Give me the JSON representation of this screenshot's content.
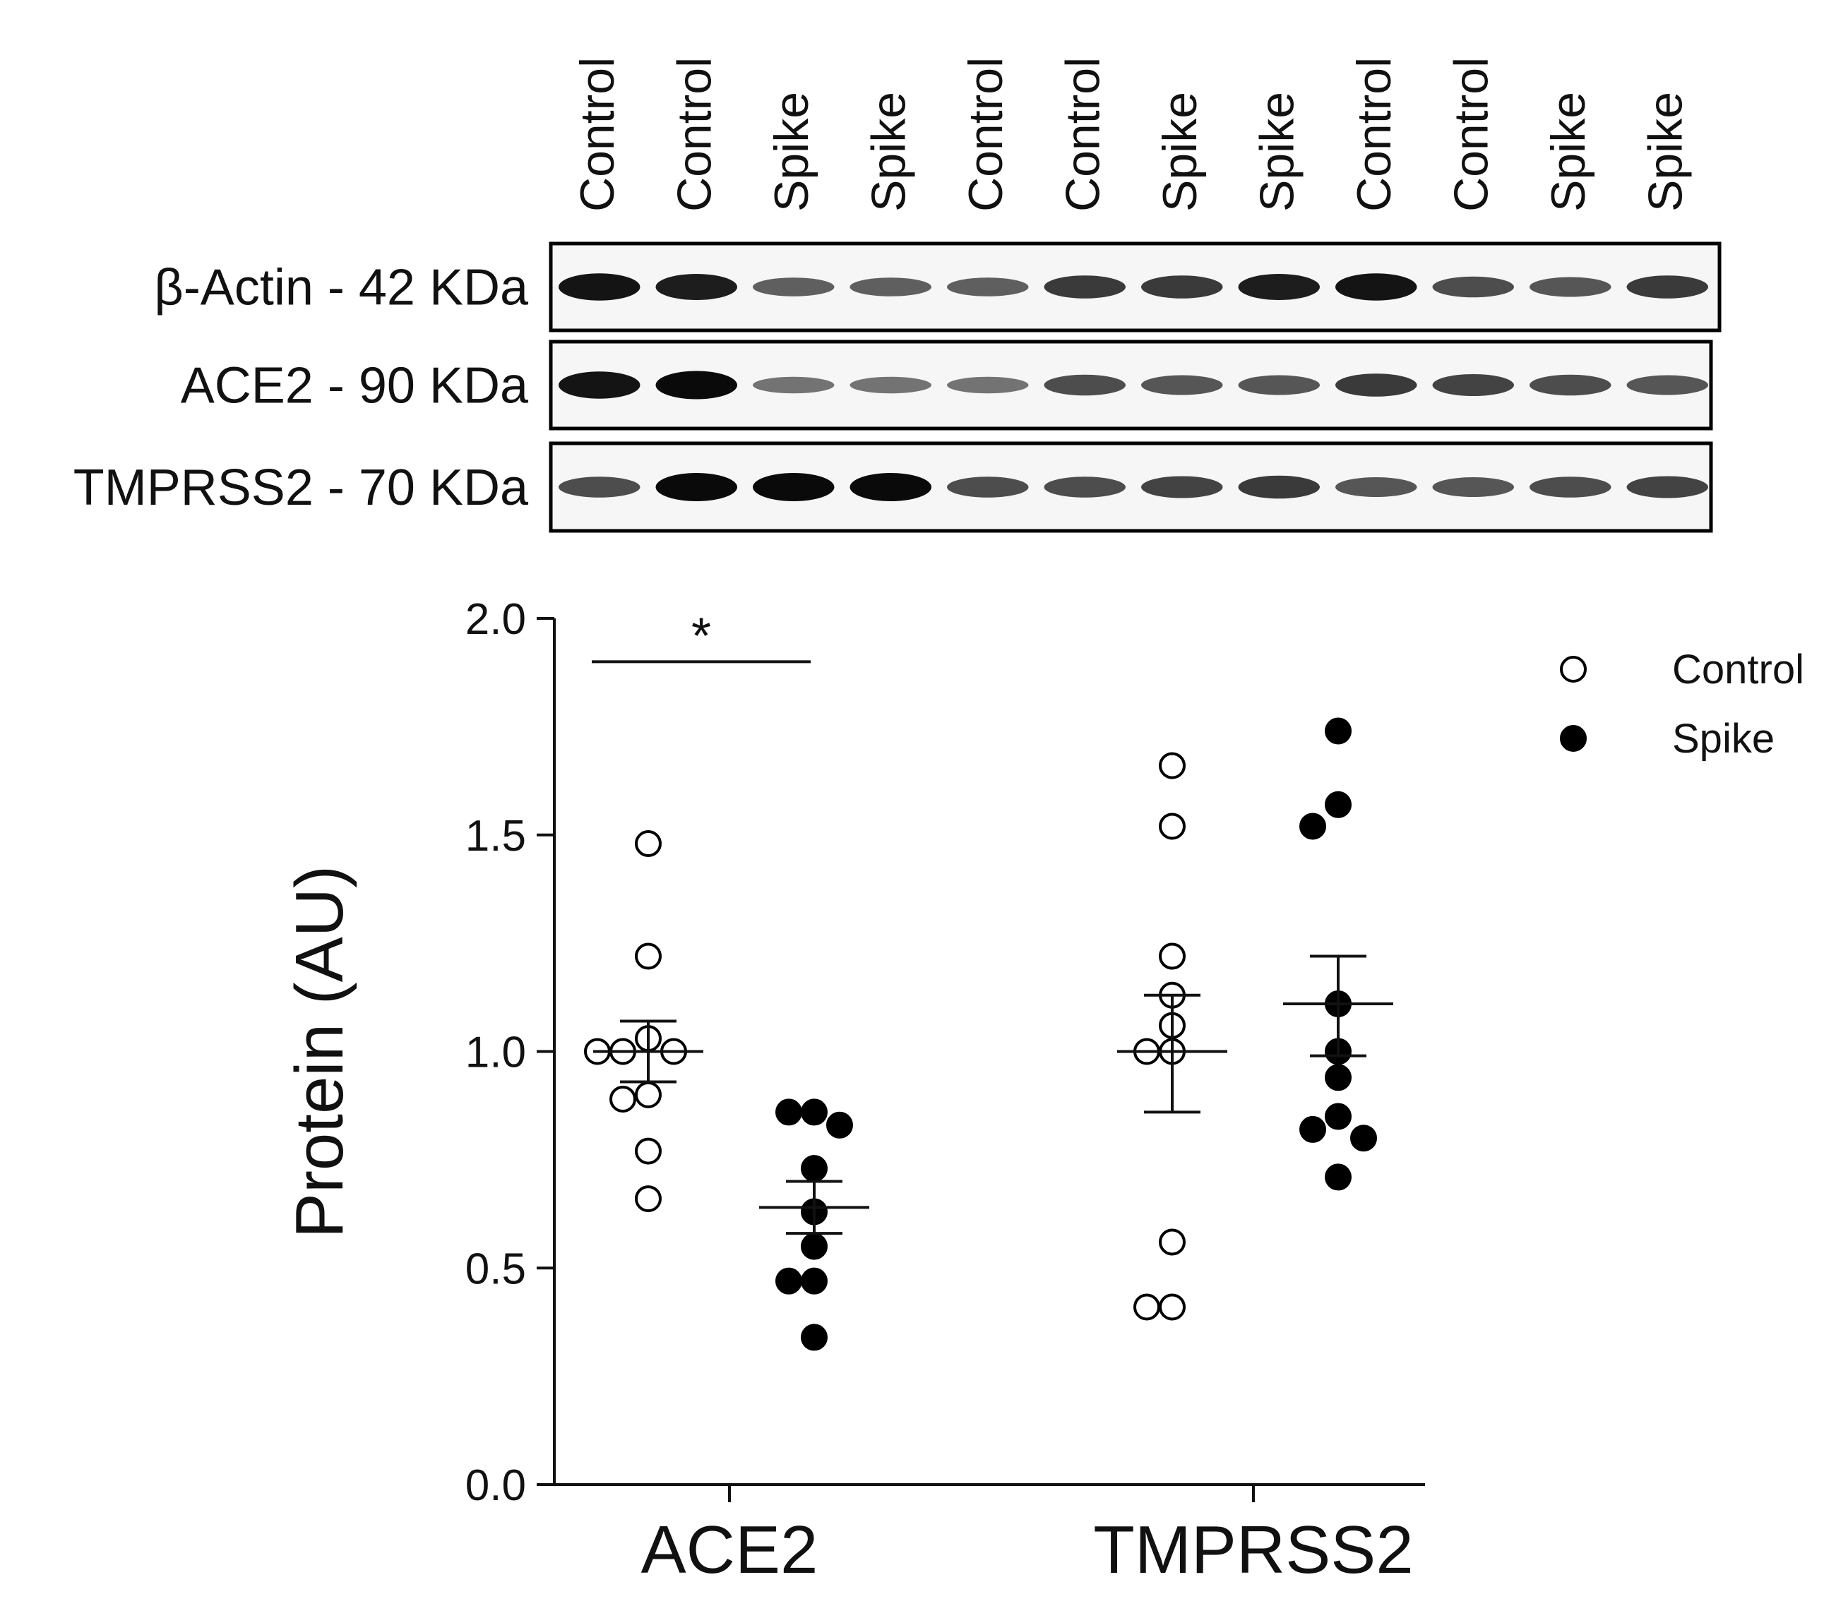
{
  "blot": {
    "lane_labels": [
      "Control",
      "Control",
      "Spike",
      "Spike",
      "Control",
      "Control",
      "Spike",
      "Spike",
      "Control",
      "Control",
      "Spike",
      "Spike"
    ],
    "panels": [
      {
        "label": "β-Actin - 42 KDa",
        "intensities": [
          0.95,
          0.9,
          0.55,
          0.55,
          0.55,
          0.75,
          0.75,
          0.9,
          0.95,
          0.65,
          0.6,
          0.75
        ]
      },
      {
        "label": "ACE2 - 90 KDa",
        "intensities": [
          0.95,
          1.0,
          0.45,
          0.45,
          0.45,
          0.65,
          0.6,
          0.6,
          0.75,
          0.7,
          0.65,
          0.6
        ]
      },
      {
        "label": "TMPRSS2 - 70 KDa",
        "intensities": [
          0.65,
          1.0,
          1.0,
          1.0,
          0.65,
          0.65,
          0.7,
          0.75,
          0.6,
          0.6,
          0.65,
          0.7
        ]
      }
    ]
  },
  "chart_data": {
    "type": "scatter",
    "categories": [
      "ACE2",
      "TMPRSS2"
    ],
    "ylabel": "Protein (AU)",
    "ylim": [
      0,
      2.0
    ],
    "yticks": [
      "0.0",
      "0.5",
      "1.0",
      "1.5",
      "2.0"
    ],
    "legend_position": "top-right",
    "series": [
      {
        "name": "Control",
        "fill": "#ffffff",
        "groups": [
          {
            "category": "ACE2",
            "mean": 1.0,
            "sem": [
              0.93,
              1.07
            ],
            "values": [
              1.48,
              1.22,
              1.03,
              1.0,
              1.0,
              1.0,
              0.9,
              0.89,
              0.77,
              0.66
            ]
          },
          {
            "category": "TMPRSS2",
            "mean": 1.0,
            "sem": [
              0.86,
              1.13
            ],
            "values": [
              1.66,
              1.52,
              1.22,
              1.13,
              1.06,
              1.0,
              1.0,
              0.56,
              0.41,
              0.41
            ]
          }
        ]
      },
      {
        "name": "Spike",
        "fill": "#000000",
        "groups": [
          {
            "category": "ACE2",
            "mean": 0.64,
            "sem": [
              0.58,
              0.7
            ],
            "values": [
              0.86,
              0.86,
              0.83,
              0.73,
              0.63,
              0.55,
              0.47,
              0.47,
              0.34
            ]
          },
          {
            "category": "TMPRSS2",
            "mean": 1.11,
            "sem": [
              0.99,
              1.22
            ],
            "values": [
              1.74,
              1.57,
              1.52,
              1.11,
              1.0,
              0.94,
              0.85,
              0.82,
              0.8,
              0.71
            ]
          }
        ]
      }
    ],
    "significance": [
      {
        "text": "*",
        "between": [
          "Control",
          "Spike"
        ],
        "category": "ACE2"
      }
    ]
  }
}
